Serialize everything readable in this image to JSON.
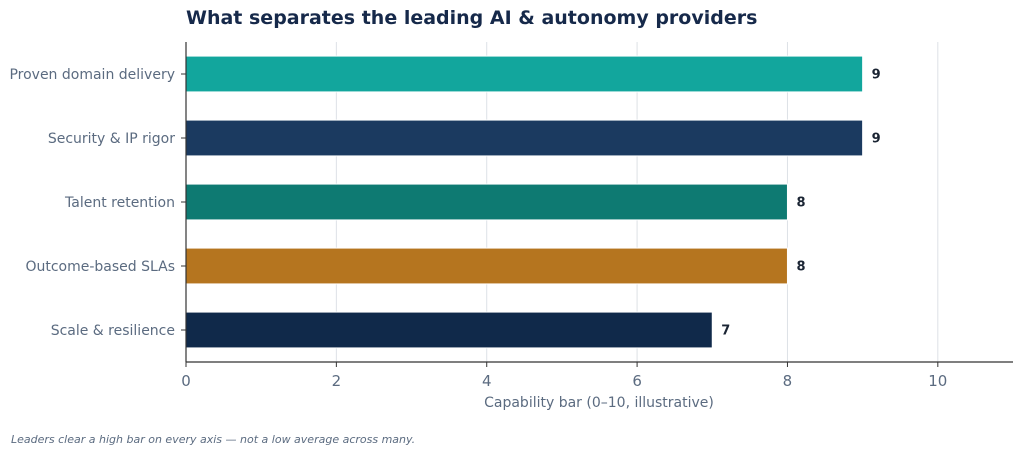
{
  "chart_data": {
    "type": "bar",
    "orientation": "horizontal",
    "title": "What separates the leading AI & autonomy providers",
    "xlabel": "Capability bar (0–10, illustrative)",
    "ylabel": "",
    "xlim": [
      0,
      11
    ],
    "xticks": [
      "0",
      "2",
      "4",
      "6",
      "8",
      "10"
    ],
    "grid": "vertical",
    "legend": "none",
    "categories": [
      "Proven domain delivery",
      "Security & IP rigor",
      "Talent retention",
      "Outcome-based SLAs",
      "Scale & resilience"
    ],
    "values": [
      9,
      9,
      8,
      8,
      7
    ],
    "value_labels": [
      "9",
      "9",
      "8",
      "8",
      "7"
    ],
    "colors": [
      "#12a69d",
      "#1b3a60",
      "#0e7a72",
      "#b5751f",
      "#10294a"
    ]
  },
  "footnote": "Leaders clear a high bar on every axis — not a low average across many."
}
